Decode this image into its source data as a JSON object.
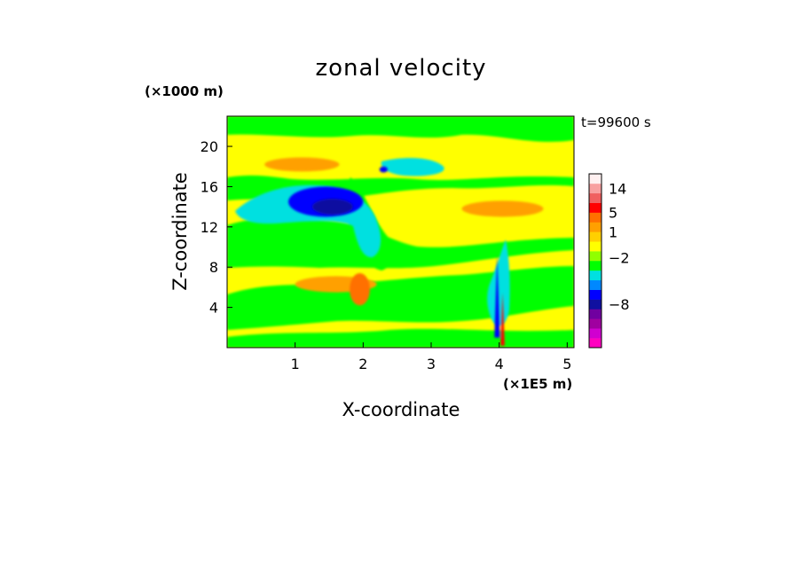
{
  "chart_data": {
    "type": "heatmap",
    "title": "zonal velocity",
    "xlabel": "X-coordinate",
    "ylabel": "Z-coordinate",
    "x_unit": "(×1E5 m)",
    "y_unit": "(×1000 m)",
    "time_label": "t=99600 s",
    "xlim": [
      0,
      5.1
    ],
    "ylim": [
      0,
      23
    ],
    "x_ticks": [
      1,
      2,
      3,
      4,
      5
    ],
    "y_ticks": [
      4,
      8,
      12,
      16,
      20
    ],
    "colorbar": {
      "levels": [
        {
          "color": "#ff00c0"
        },
        {
          "color": "#d000d0"
        },
        {
          "color": "#a000a0"
        },
        {
          "color": "#7000a0"
        },
        {
          "color": "#1010a0"
        },
        {
          "color": "#0000ff"
        },
        {
          "color": "#0088ff"
        },
        {
          "color": "#00e0e0"
        },
        {
          "color": "#00ff00"
        },
        {
          "color": "#90ff00"
        },
        {
          "color": "#ffff00"
        },
        {
          "color": "#ffd000"
        },
        {
          "color": "#ffa000"
        },
        {
          "color": "#ff7000"
        },
        {
          "color": "#ff0000"
        },
        {
          "color": "#f06060"
        },
        {
          "color": "#f8a0a0"
        },
        {
          "color": "#fff0f0"
        }
      ],
      "tick_labels": [
        {
          "label": "14",
          "level_index": 16.5
        },
        {
          "label": "5",
          "level_index": 14
        },
        {
          "label": "1",
          "level_index": 12
        },
        {
          "label": "−2",
          "level_index": 9.3
        },
        {
          "label": "−8",
          "level_index": 4.5
        }
      ]
    },
    "field_features": [
      {
        "kind": "blob",
        "x": 1.45,
        "z": 14.5,
        "rx": 0.55,
        "rz": 1.5,
        "color": "#0000ff"
      },
      {
        "kind": "blob",
        "x": 1.55,
        "z": 14.0,
        "rx": 0.3,
        "rz": 0.8,
        "color": "#1010a0"
      },
      {
        "kind": "blob",
        "x": 2.3,
        "z": 17.7,
        "rx": 0.06,
        "rz": 0.3,
        "color": "#0000ff"
      },
      {
        "kind": "blob",
        "x": 1.1,
        "z": 18.2,
        "rx": 0.55,
        "rz": 0.7,
        "color": "#ffa000"
      },
      {
        "kind": "blob",
        "x": 4.05,
        "z": 13.8,
        "rx": 0.6,
        "rz": 0.8,
        "color": "#ffa000"
      },
      {
        "kind": "blob",
        "x": 1.6,
        "z": 6.3,
        "rx": 0.6,
        "rz": 0.8,
        "color": "#ffa000"
      },
      {
        "kind": "blob",
        "x": 1.95,
        "z": 5.8,
        "rx": 0.15,
        "rz": 1.6,
        "color": "#ff7000"
      },
      {
        "kind": "streak",
        "x": 3.97,
        "z0": 1.0,
        "z1": 9.2,
        "w": 0.08,
        "color": "#0000ff"
      },
      {
        "kind": "streak",
        "x": 4.05,
        "z0": 0.2,
        "z1": 5.5,
        "w": 0.06,
        "color": "#ff0000"
      }
    ]
  }
}
